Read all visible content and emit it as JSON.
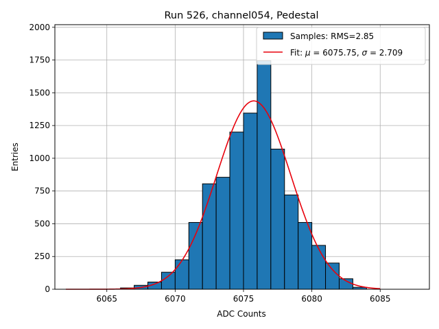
{
  "chart_data": {
    "type": "bar",
    "title": "Run 526, channel054, Pedestal",
    "xlabel": "ADC Counts",
    "ylabel": "Entries",
    "xlim": [
      6061.2,
      6088.6
    ],
    "ylim": [
      0,
      2020
    ],
    "xticks": [
      6065,
      6070,
      6075,
      6080,
      6085
    ],
    "yticks": [
      0,
      250,
      500,
      750,
      1000,
      1250,
      1500,
      1750,
      2000
    ],
    "grid": true,
    "legend_position": "top-right",
    "bar_color": "#1f77b4",
    "fit_color": "#e8000b",
    "histogram": {
      "name": "Samples: RMS=2.85",
      "bin_width": 1,
      "bin_edges_left": [
        6066,
        6067,
        6068,
        6069,
        6070,
        6071,
        6072,
        6073,
        6074,
        6075,
        6076,
        6077,
        6078,
        6079,
        6080,
        6081,
        6082,
        6083
      ],
      "values": [
        10,
        30,
        55,
        130,
        225,
        510,
        805,
        855,
        1200,
        1345,
        1745,
        1070,
        720,
        510,
        335,
        200,
        80,
        15
      ]
    },
    "fit": {
      "name_prefix": "Fit: ",
      "mu_symbol": "μ",
      "mu_text": " = 6075.75, ",
      "sigma_symbol": "σ",
      "sigma_text": " = 2.709",
      "mu": 6075.75,
      "sigma": 2.709,
      "amplitude": 1438,
      "x_range": [
        6062,
        6085
      ]
    }
  }
}
